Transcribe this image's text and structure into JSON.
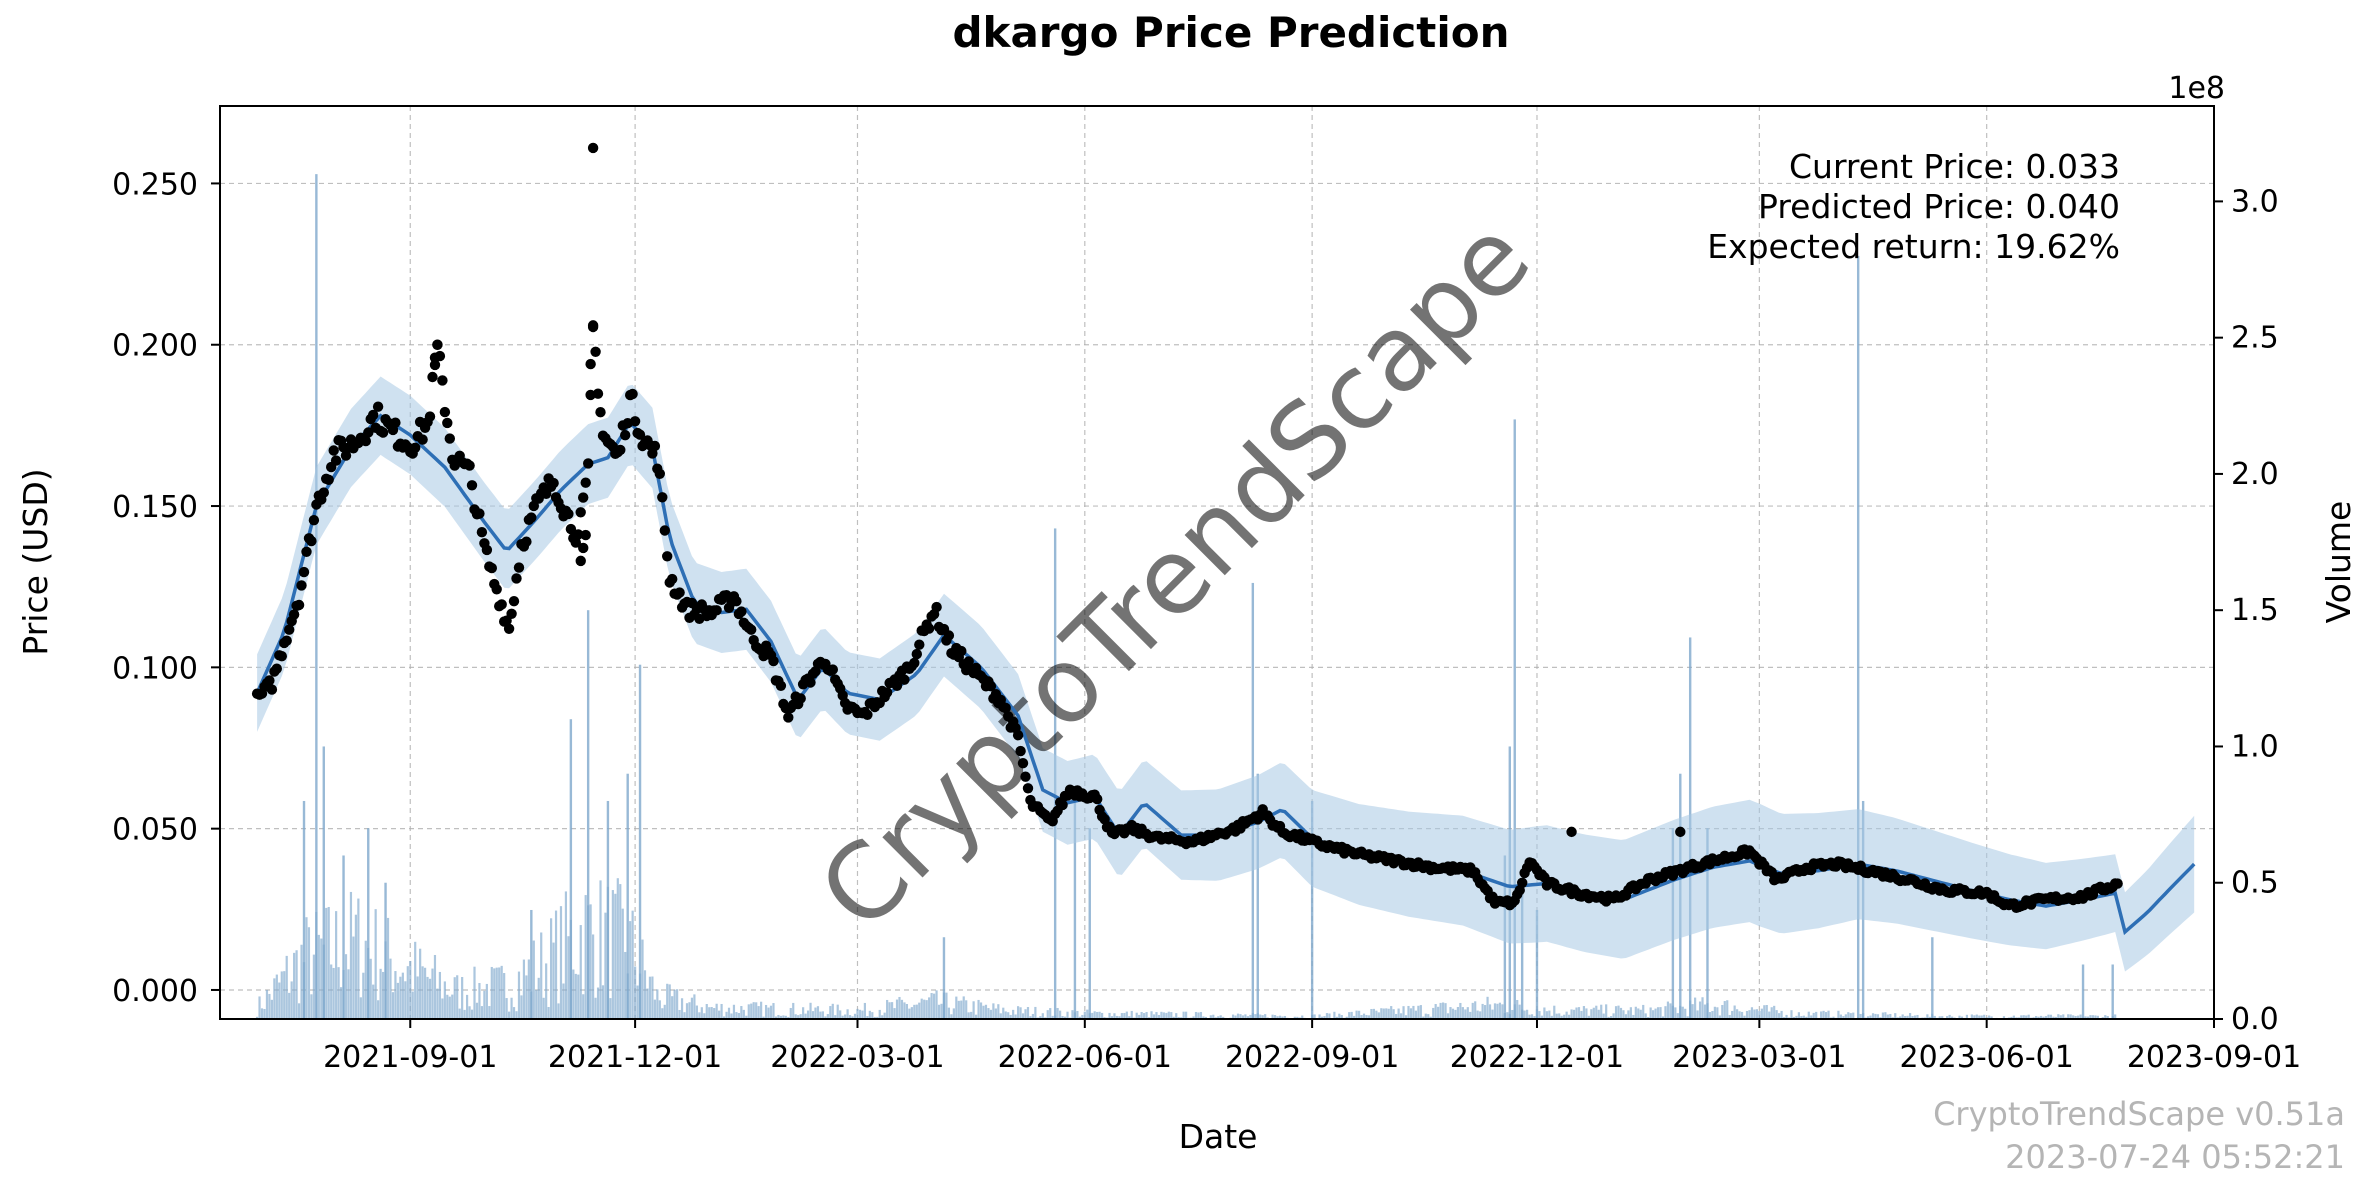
{
  "chart_data": {
    "type": "line",
    "title": "dkargo Price Prediction",
    "xlabel": "Date",
    "ylabel": "Price (USD)",
    "y2label": "Volume",
    "y2_multiplier_label": "1e8",
    "xlim": [
      "2021-06-16",
      "2023-09-01"
    ],
    "ylim": [
      -0.009,
      0.274
    ],
    "y2lim": [
      0,
      3.35
    ],
    "x_ticks": [
      "2021-09-01",
      "2021-12-01",
      "2022-03-01",
      "2022-06-01",
      "2022-09-01",
      "2022-12-01",
      "2023-03-01",
      "2023-06-01",
      "2023-09-01"
    ],
    "y_ticks": [
      "0.000",
      "0.050",
      "0.100",
      "0.150",
      "0.200",
      "0.250"
    ],
    "y2_ticks": [
      "0.0",
      "0.5",
      "1.0",
      "1.5",
      "2.0",
      "2.5",
      "3.0"
    ],
    "grid": true,
    "annotations": {
      "current_price": "Current Price: 0.033",
      "predicted_price": "Predicted Price: 0.040",
      "expected_return": "Expected return: 19.62%"
    },
    "watermark": "CryptoTrendScape",
    "footer": {
      "version": "CryptoTrendScape v0.51a",
      "timestamp": "2023-07-24 05:52:21"
    },
    "colors": {
      "trend": "#2e6fb5",
      "band": "#a8c8e4",
      "volume": "#7ea8cc",
      "points": "#000000"
    },
    "price_anchors": [
      [
        "2021-07-01",
        0.09
      ],
      [
        "2021-07-07",
        0.095
      ],
      [
        "2021-07-12",
        0.108
      ],
      [
        "2021-07-18",
        0.122
      ],
      [
        "2021-07-25",
        0.15
      ],
      [
        "2021-08-01",
        0.166
      ],
      [
        "2021-08-10",
        0.17
      ],
      [
        "2021-08-18",
        0.178
      ],
      [
        "2021-08-25",
        0.173
      ],
      [
        "2021-09-01",
        0.169
      ],
      [
        "2021-09-08",
        0.175
      ],
      [
        "2021-09-12",
        0.198
      ],
      [
        "2021-09-18",
        0.166
      ],
      [
        "2021-09-25",
        0.16
      ],
      [
        "2021-10-01",
        0.137
      ],
      [
        "2021-10-06",
        0.124
      ],
      [
        "2021-10-11",
        0.112
      ],
      [
        "2021-10-16",
        0.138
      ],
      [
        "2021-10-22",
        0.15
      ],
      [
        "2021-10-29",
        0.158
      ],
      [
        "2021-11-03",
        0.148
      ],
      [
        "2021-11-08",
        0.14
      ],
      [
        "2021-11-12",
        0.16
      ],
      [
        "2021-11-14",
        0.205
      ],
      [
        "2021-11-18",
        0.172
      ],
      [
        "2021-11-24",
        0.165
      ],
      [
        "2021-11-29",
        0.183
      ],
      [
        "2021-12-05",
        0.17
      ],
      [
        "2021-12-10",
        0.165
      ],
      [
        "2021-12-15",
        0.128
      ],
      [
        "2021-12-22",
        0.118
      ],
      [
        "2022-01-01",
        0.117
      ],
      [
        "2022-01-10",
        0.122
      ],
      [
        "2022-01-17",
        0.11
      ],
      [
        "2022-01-25",
        0.103
      ],
      [
        "2022-02-01",
        0.085
      ],
      [
        "2022-02-09",
        0.096
      ],
      [
        "2022-02-16",
        0.103
      ],
      [
        "2022-02-24",
        0.088
      ],
      [
        "2022-03-03",
        0.085
      ],
      [
        "2022-03-12",
        0.092
      ],
      [
        "2022-03-22",
        0.1
      ],
      [
        "2022-04-01",
        0.118
      ],
      [
        "2022-04-08",
        0.106
      ],
      [
        "2022-04-18",
        0.098
      ],
      [
        "2022-04-28",
        0.09
      ],
      [
        "2022-05-05",
        0.078
      ],
      [
        "2022-05-10",
        0.058
      ],
      [
        "2022-05-18",
        0.052
      ],
      [
        "2022-05-26",
        0.062
      ],
      [
        "2022-06-05",
        0.06
      ],
      [
        "2022-06-12",
        0.048
      ],
      [
        "2022-06-20",
        0.05
      ],
      [
        "2022-07-01",
        0.047
      ],
      [
        "2022-07-15",
        0.046
      ],
      [
        "2022-08-01",
        0.05
      ],
      [
        "2022-08-12",
        0.055
      ],
      [
        "2022-08-20",
        0.049
      ],
      [
        "2022-09-05",
        0.045
      ],
      [
        "2022-09-20",
        0.042
      ],
      [
        "2022-10-05",
        0.04
      ],
      [
        "2022-10-20",
        0.038
      ],
      [
        "2022-11-05",
        0.037
      ],
      [
        "2022-11-14",
        0.027
      ],
      [
        "2022-11-22",
        0.027
      ],
      [
        "2022-11-28",
        0.04
      ],
      [
        "2022-12-05",
        0.033
      ],
      [
        "2022-12-18",
        0.03
      ],
      [
        "2023-01-01",
        0.028
      ],
      [
        "2023-01-15",
        0.034
      ],
      [
        "2023-02-01",
        0.038
      ],
      [
        "2023-02-10",
        0.04
      ],
      [
        "2023-02-25",
        0.043
      ],
      [
        "2023-03-08",
        0.034
      ],
      [
        "2023-03-20",
        0.038
      ],
      [
        "2023-04-01",
        0.039
      ],
      [
        "2023-04-15",
        0.037
      ],
      [
        "2023-05-01",
        0.034
      ],
      [
        "2023-05-15",
        0.031
      ],
      [
        "2023-06-01",
        0.03
      ],
      [
        "2023-06-10",
        0.026
      ],
      [
        "2023-06-25",
        0.028
      ],
      [
        "2023-07-10",
        0.029
      ],
      [
        "2023-07-24",
        0.033
      ]
    ],
    "price_outliers": [
      [
        "2021-09-11",
        0.196
      ],
      [
        "2021-09-12",
        0.2
      ],
      [
        "2021-11-13",
        0.194
      ],
      [
        "2021-11-14",
        0.206
      ],
      [
        "2021-11-14",
        0.261
      ],
      [
        "2021-11-09",
        0.133
      ],
      [
        "2021-11-10",
        0.137
      ],
      [
        "2021-11-11",
        0.141
      ],
      [
        "2022-12-15",
        0.049
      ],
      [
        "2023-01-28",
        0.049
      ]
    ],
    "trend_anchors": [
      [
        "2021-07-01",
        0.092
      ],
      [
        "2021-07-12",
        0.111
      ],
      [
        "2021-07-25",
        0.15
      ],
      [
        "2021-08-08",
        0.168
      ],
      [
        "2021-08-20",
        0.178
      ],
      [
        "2021-09-01",
        0.172
      ],
      [
        "2021-09-15",
        0.162
      ],
      [
        "2021-10-01",
        0.145
      ],
      [
        "2021-10-10",
        0.136
      ],
      [
        "2021-10-22",
        0.146
      ],
      [
        "2021-11-01",
        0.155
      ],
      [
        "2021-11-12",
        0.163
      ],
      [
        "2021-11-20",
        0.165
      ],
      [
        "2021-11-29",
        0.176
      ],
      [
        "2021-12-08",
        0.168
      ],
      [
        "2021-12-15",
        0.14
      ],
      [
        "2021-12-25",
        0.12
      ],
      [
        "2022-01-05",
        0.117
      ],
      [
        "2022-01-15",
        0.118
      ],
      [
        "2022-01-25",
        0.108
      ],
      [
        "2022-02-05",
        0.09
      ],
      [
        "2022-02-15",
        0.1
      ],
      [
        "2022-02-25",
        0.092
      ],
      [
        "2022-03-10",
        0.09
      ],
      [
        "2022-03-25",
        0.098
      ],
      [
        "2022-04-05",
        0.11
      ],
      [
        "2022-04-20",
        0.1
      ],
      [
        "2022-05-05",
        0.085
      ],
      [
        "2022-05-15",
        0.062
      ],
      [
        "2022-05-25",
        0.058
      ],
      [
        "2022-06-05",
        0.06
      ],
      [
        "2022-06-15",
        0.048
      ],
      [
        "2022-06-25",
        0.058
      ],
      [
        "2022-07-10",
        0.048
      ],
      [
        "2022-07-25",
        0.048
      ],
      [
        "2022-08-10",
        0.052
      ],
      [
        "2022-08-20",
        0.056
      ],
      [
        "2022-09-01",
        0.047
      ],
      [
        "2022-09-20",
        0.042
      ],
      [
        "2022-10-10",
        0.039
      ],
      [
        "2022-11-01",
        0.037
      ],
      [
        "2022-11-20",
        0.032
      ],
      [
        "2022-12-05",
        0.033
      ],
      [
        "2022-12-20",
        0.03
      ],
      [
        "2023-01-05",
        0.028
      ],
      [
        "2023-01-25",
        0.034
      ],
      [
        "2023-02-10",
        0.038
      ],
      [
        "2023-02-25",
        0.04
      ],
      [
        "2023-03-10",
        0.036
      ],
      [
        "2023-03-25",
        0.037
      ],
      [
        "2023-04-10",
        0.039
      ],
      [
        "2023-04-25",
        0.037
      ],
      [
        "2023-05-10",
        0.034
      ],
      [
        "2023-05-25",
        0.031
      ],
      [
        "2023-06-10",
        0.028
      ],
      [
        "2023-06-25",
        0.026
      ],
      [
        "2023-07-10",
        0.028
      ],
      [
        "2023-07-23",
        0.03
      ],
      [
        "2023-07-27",
        0.018
      ],
      [
        "2023-08-05",
        0.024
      ],
      [
        "2023-08-15",
        0.032
      ],
      [
        "2023-08-24",
        0.039
      ]
    ],
    "band_width": [
      [
        "2021-07-01",
        0.012
      ],
      [
        "2022-06-01",
        0.013
      ],
      [
        "2022-09-01",
        0.015
      ],
      [
        "2022-12-01",
        0.018
      ],
      [
        "2023-03-01",
        0.019
      ],
      [
        "2023-07-24",
        0.012
      ],
      [
        "2023-08-24",
        0.015
      ]
    ],
    "volume_baseline": [
      [
        "2021-07-01",
        0.04
      ],
      [
        "2021-07-20",
        0.22
      ],
      [
        "2021-08-10",
        0.28
      ],
      [
        "2021-09-01",
        0.18
      ],
      [
        "2021-09-20",
        0.1
      ],
      [
        "2021-10-10",
        0.12
      ],
      [
        "2021-10-25",
        0.2
      ],
      [
        "2021-11-10",
        0.32
      ],
      [
        "2021-11-28",
        0.28
      ],
      [
        "2021-12-10",
        0.08
      ],
      [
        "2022-01-01",
        0.04
      ],
      [
        "2022-03-01",
        0.03
      ],
      [
        "2022-04-01",
        0.06
      ],
      [
        "2022-05-01",
        0.03
      ],
      [
        "2022-06-01",
        0.02
      ],
      [
        "2022-09-01",
        0.01
      ],
      [
        "2022-11-15",
        0.05
      ],
      [
        "2022-12-10",
        0.03
      ],
      [
        "2023-01-15",
        0.03
      ],
      [
        "2023-02-10",
        0.05
      ],
      [
        "2023-03-15",
        0.02
      ],
      [
        "2023-05-15",
        0.01
      ],
      [
        "2023-07-24",
        0.01
      ]
    ],
    "volume_spikes": [
      [
        "2021-07-25",
        3.1
      ],
      [
        "2021-07-20",
        0.8
      ],
      [
        "2021-07-28",
        1.0
      ],
      [
        "2021-08-05",
        0.6
      ],
      [
        "2021-08-15",
        0.7
      ],
      [
        "2021-08-22",
        0.5
      ],
      [
        "2021-11-12",
        1.5
      ],
      [
        "2021-11-05",
        1.1
      ],
      [
        "2021-11-20",
        0.8
      ],
      [
        "2021-12-03",
        1.3
      ],
      [
        "2021-11-28",
        0.9
      ],
      [
        "2021-10-20",
        0.4
      ],
      [
        "2022-04-05",
        0.3
      ],
      [
        "2022-05-20",
        1.8
      ],
      [
        "2022-05-28",
        0.8
      ],
      [
        "2022-06-03",
        0.7
      ],
      [
        "2022-08-08",
        1.6
      ],
      [
        "2022-08-10",
        0.9
      ],
      [
        "2022-09-01",
        0.8
      ],
      [
        "2022-11-18",
        0.6
      ],
      [
        "2022-11-20",
        1.0
      ],
      [
        "2022-11-22",
        2.2
      ],
      [
        "2022-11-25",
        0.5
      ],
      [
        "2022-12-01",
        0.4
      ],
      [
        "2023-01-25",
        0.7
      ],
      [
        "2023-01-28",
        0.9
      ],
      [
        "2023-02-01",
        1.4
      ],
      [
        "2023-02-08",
        0.7
      ],
      [
        "2023-04-10",
        2.8
      ],
      [
        "2023-04-12",
        0.8
      ],
      [
        "2023-05-10",
        0.3
      ],
      [
        "2023-07-10",
        0.2
      ],
      [
        "2023-07-22",
        0.2
      ]
    ]
  }
}
